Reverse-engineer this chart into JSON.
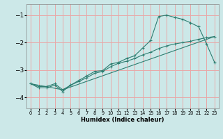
{
  "title": "",
  "xlabel": "Humidex (Indice chaleur)",
  "bg_color": "#cce8e8",
  "grid_color": "#e8a8a8",
  "line_color": "#2e7d70",
  "xlim": [
    -0.5,
    23.5
  ],
  "ylim": [
    -4.4,
    -0.6
  ],
  "yticks": [
    -4,
    -3,
    -2,
    -1
  ],
  "xticks": [
    0,
    1,
    2,
    3,
    4,
    5,
    6,
    7,
    8,
    9,
    10,
    11,
    12,
    13,
    14,
    15,
    16,
    17,
    18,
    19,
    20,
    21,
    22,
    23
  ],
  "line1_x": [
    0,
    1,
    2,
    3,
    4,
    5,
    6,
    7,
    8,
    9,
    10,
    11,
    12,
    13,
    14,
    15,
    16,
    17,
    18,
    19,
    20,
    21,
    22,
    23
  ],
  "line1_y": [
    -3.5,
    -3.6,
    -3.6,
    -3.5,
    -3.72,
    -3.55,
    -3.42,
    -3.28,
    -3.12,
    -3.05,
    -2.88,
    -2.75,
    -2.68,
    -2.58,
    -2.45,
    -2.35,
    -2.22,
    -2.12,
    -2.05,
    -2.0,
    -1.95,
    -1.88,
    -1.82,
    -1.78
  ],
  "line2_x": [
    0,
    1,
    2,
    3,
    4,
    5,
    6,
    7,
    8,
    9,
    10,
    11,
    12,
    13,
    14,
    15,
    16,
    17,
    18,
    19,
    20,
    21,
    22,
    23
  ],
  "line2_y": [
    -3.5,
    -3.65,
    -3.65,
    -3.55,
    -3.78,
    -3.55,
    -3.38,
    -3.22,
    -3.05,
    -3.02,
    -2.78,
    -2.72,
    -2.58,
    -2.48,
    -2.2,
    -1.92,
    -1.05,
    -1.0,
    -1.08,
    -1.15,
    -1.28,
    -1.42,
    -2.05,
    -2.72
  ],
  "line3_x": [
    0,
    4,
    23
  ],
  "line3_y": [
    -3.5,
    -3.72,
    -1.78
  ]
}
